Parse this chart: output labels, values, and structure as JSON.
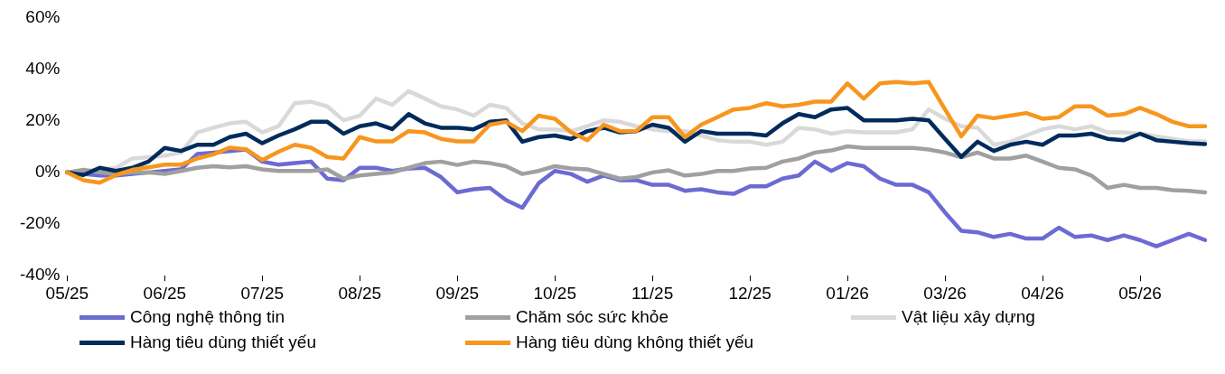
{
  "chart_data": {
    "type": "line",
    "categories": [
      "05/25",
      null,
      null,
      null,
      null,
      null,
      "06/25",
      null,
      null,
      null,
      null,
      null,
      "07/25",
      null,
      null,
      null,
      null,
      null,
      "08/25",
      null,
      null,
      null,
      null,
      null,
      "09/25",
      null,
      null,
      null,
      null,
      null,
      "10/25",
      null,
      null,
      null,
      null,
      null,
      "11/25",
      null,
      null,
      null,
      null,
      null,
      "12/25",
      null,
      null,
      null,
      null,
      null,
      "01/26",
      null,
      null,
      null,
      null,
      null,
      "03/26",
      null,
      null,
      null,
      null,
      null,
      "04/26",
      null,
      null,
      null,
      null,
      null,
      "05/26",
      null,
      null,
      null,
      null
    ],
    "series": [
      {
        "name": "Công nghệ thông tin",
        "color": "#6b6bd3",
        "values": [
          0,
          -0.6,
          -1.2,
          -1.2,
          -0.6,
          0,
          0.6,
          1.2,
          7.1,
          7.7,
          8.3,
          8.9,
          4.2,
          3,
          3.6,
          4.2,
          -2.4,
          -3,
          1.8,
          1.8,
          0.6,
          1.5,
          1.8,
          -1.8,
          -7.7,
          -6.5,
          -6,
          -10.7,
          -13.7,
          -4.2,
          0.6,
          -0.6,
          -3.6,
          -1.2,
          -3,
          -3,
          -4.8,
          -4.8,
          -7.1,
          -6.5,
          -7.7,
          -8.3,
          -5.4,
          -5.4,
          -2.4,
          -1.2,
          4.2,
          0.6,
          3.6,
          2.4,
          -2.4,
          -4.8,
          -4.8,
          -7.7,
          -15.5,
          -22.6,
          -23.2,
          -25,
          -23.8,
          -25.6,
          -25.6,
          -21.4,
          -25,
          -24.4,
          -26.2,
          -24.4,
          -26.2,
          -28.6,
          -26.2,
          -23.8,
          -26.2
        ]
      },
      {
        "name": "Chăm sóc sức khỏe",
        "color": "#a0a0a0",
        "values": [
          0,
          1,
          0,
          -0.6,
          0,
          0,
          -0.6,
          0.6,
          1.8,
          2.4,
          2,
          2.4,
          1.2,
          0.6,
          0.6,
          0.6,
          1.2,
          -2.4,
          -1.2,
          -0.6,
          0,
          1.8,
          3.6,
          4.2,
          2.9,
          4.2,
          3.6,
          2.4,
          -0.6,
          0.6,
          2.4,
          1.5,
          1.2,
          -0.6,
          -2.4,
          -1.8,
          0,
          0.8,
          -1.2,
          -0.6,
          0.6,
          0.6,
          1.5,
          1.8,
          4.2,
          5.4,
          7.7,
          8.5,
          10.1,
          9.5,
          9.5,
          9.5,
          9.5,
          8.9,
          7.7,
          5.9,
          7.7,
          5.4,
          5.4,
          6.5,
          4.2,
          1.8,
          1.2,
          -1.2,
          -6,
          -4.8,
          -6,
          -6,
          -6.9,
          -7.1,
          -7.7
        ]
      },
      {
        "name": "Vật liệu xây dựng",
        "color": "#d9d9d9",
        "values": [
          0,
          0.6,
          1.2,
          1.8,
          5.4,
          5.9,
          6.5,
          7.7,
          15.5,
          17.3,
          19,
          19.6,
          15.5,
          17.9,
          26.8,
          27.4,
          25.6,
          20.2,
          22,
          28.6,
          26.2,
          31.5,
          28.6,
          25.6,
          24.4,
          22,
          26.2,
          25,
          19,
          16.7,
          16.7,
          16,
          17.9,
          20.2,
          19.6,
          17.9,
          16.7,
          16,
          16,
          14.3,
          12.5,
          11.9,
          11.9,
          10.7,
          11.9,
          17.3,
          16.7,
          15,
          16,
          15.5,
          15.5,
          15.5,
          16.7,
          24.4,
          20.8,
          17.9,
          17.3,
          10.7,
          11.9,
          14.3,
          16.7,
          17.9,
          16.7,
          17.9,
          15.5,
          15.5,
          15,
          14,
          13,
          12,
          12
        ]
      },
      {
        "name": "Hàng tiêu dùng thiết yếu",
        "color": "#002b5c",
        "values": [
          0,
          -1,
          1.8,
          0.6,
          1.8,
          4.2,
          9.5,
          8.3,
          10.7,
          10.7,
          13.7,
          15,
          11.3,
          14.3,
          16.7,
          19.6,
          19.6,
          15,
          17.9,
          19,
          16.8,
          22.6,
          19,
          17.3,
          17.3,
          16.7,
          19.6,
          20.2,
          11.9,
          13.7,
          14.3,
          13,
          16,
          17.3,
          15.5,
          16,
          18.5,
          17.3,
          11.9,
          16,
          15,
          15,
          15,
          14.3,
          19,
          22.6,
          21.4,
          24.4,
          25,
          20.2,
          20.2,
          20.2,
          20.8,
          20.2,
          13,
          6,
          11.9,
          8.3,
          10.7,
          11.9,
          10.7,
          14.3,
          14.3,
          15,
          13,
          12.5,
          15,
          12.5,
          11.9,
          11.3,
          11
        ]
      },
      {
        "name": "Hàng tiêu dùng không thiết yếu",
        "color": "#f7961e",
        "values": [
          0,
          -3,
          -4,
          -1,
          1,
          2,
          3,
          3,
          5.4,
          7,
          9.6,
          9,
          4.8,
          8,
          10.7,
          9.6,
          6,
          5.4,
          13.7,
          12,
          12,
          16,
          15.5,
          13,
          12,
          12,
          18.5,
          19.6,
          16,
          22,
          20.8,
          15.5,
          12.5,
          18.5,
          16,
          16,
          21.4,
          21.4,
          13.7,
          18.5,
          21.4,
          24.4,
          25,
          26.8,
          25.6,
          26.2,
          27.4,
          27.4,
          34.5,
          28.6,
          34.5,
          35,
          34.5,
          35,
          24.4,
          14,
          22,
          21,
          22,
          23,
          20.8,
          21.4,
          25.6,
          25.6,
          22,
          22.6,
          25,
          22.6,
          19.6,
          17.9,
          17.9
        ]
      }
    ],
    "ylim": [
      -40,
      60
    ],
    "yticks": [
      {
        "value": -40,
        "label": "-40%"
      },
      {
        "value": -20,
        "label": "-20%"
      },
      {
        "value": 0,
        "label": "0%"
      },
      {
        "value": 20,
        "label": "20%"
      },
      {
        "value": 40,
        "label": "40%"
      },
      {
        "value": 60,
        "label": "60%"
      }
    ],
    "grid": false,
    "legend": "bottom",
    "marker": "none",
    "line_style": "solid"
  }
}
